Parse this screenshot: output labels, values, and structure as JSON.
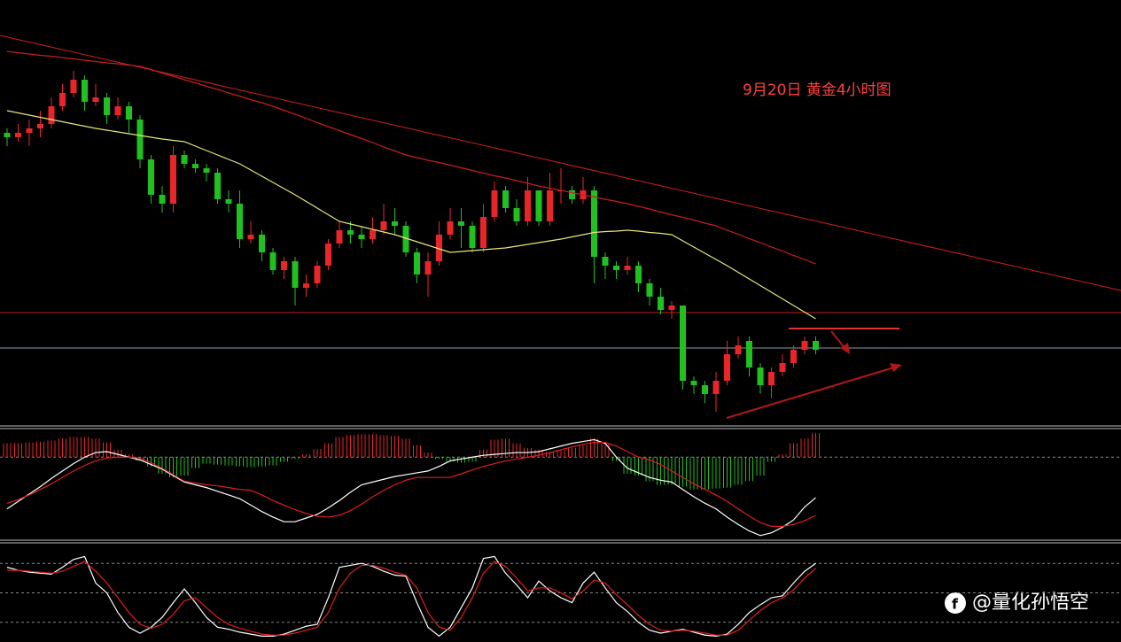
{
  "chart_data": [
    {
      "type": "candlestick",
      "title": "9月20日 黄金4小时图",
      "ylim": [
        1644,
        1740
      ],
      "up_color": "#e8262a",
      "down_color": "#1fc01f",
      "candles": [
        [
          1710,
          1709,
          1711,
          1707
        ],
        [
          1709,
          1710,
          1712,
          1708
        ],
        [
          1710,
          1711,
          1713,
          1707
        ],
        [
          1711,
          1712,
          1715,
          1709
        ],
        [
          1712,
          1716,
          1718,
          1711
        ],
        [
          1716,
          1719,
          1721,
          1715
        ],
        [
          1719,
          1722,
          1724,
          1718
        ],
        [
          1722,
          1717,
          1723,
          1715
        ],
        [
          1717,
          1718,
          1721,
          1716
        ],
        [
          1718,
          1714,
          1719,
          1712
        ],
        [
          1714,
          1716,
          1718,
          1713
        ],
        [
          1716,
          1713,
          1717,
          1710
        ],
        [
          1713,
          1704,
          1714,
          1702
        ],
        [
          1704,
          1696,
          1705,
          1694
        ],
        [
          1696,
          1694,
          1698,
          1692
        ],
        [
          1694,
          1705,
          1707,
          1692
        ],
        [
          1705,
          1703,
          1706,
          1702
        ],
        [
          1703,
          1702,
          1704,
          1701
        ],
        [
          1702,
          1701,
          1703,
          1699
        ],
        [
          1701,
          1695,
          1702,
          1694
        ],
        [
          1695,
          1694,
          1697,
          1692
        ],
        [
          1694,
          1686,
          1697,
          1684
        ],
        [
          1686,
          1687,
          1690,
          1685
        ],
        [
          1687,
          1683,
          1688,
          1681
        ],
        [
          1683,
          1679,
          1684,
          1678
        ],
        [
          1679,
          1681,
          1682,
          1677
        ],
        [
          1681,
          1675,
          1682,
          1671
        ],
        [
          1675,
          1676,
          1678,
          1673
        ],
        [
          1676,
          1680,
          1681,
          1675
        ],
        [
          1680,
          1685,
          1686,
          1679
        ],
        [
          1685,
          1688,
          1690,
          1684
        ],
        [
          1688,
          1687,
          1690,
          1685
        ],
        [
          1687,
          1686,
          1689,
          1684
        ],
        [
          1686,
          1688,
          1691,
          1685
        ],
        [
          1688,
          1690,
          1694,
          1687
        ],
        [
          1690,
          1689,
          1693,
          1687
        ],
        [
          1689,
          1683,
          1690,
          1682
        ],
        [
          1683,
          1678,
          1684,
          1676
        ],
        [
          1678,
          1681,
          1683,
          1673
        ],
        [
          1681,
          1687,
          1690,
          1680
        ],
        [
          1687,
          1690,
          1693,
          1686
        ],
        [
          1690,
          1689,
          1693,
          1684
        ],
        [
          1689,
          1684,
          1690,
          1683
        ],
        [
          1684,
          1691,
          1694,
          1683
        ],
        [
          1691,
          1697,
          1699,
          1690
        ],
        [
          1697,
          1693,
          1698,
          1692
        ],
        [
          1693,
          1690,
          1695,
          1689
        ],
        [
          1690,
          1697,
          1700,
          1689
        ],
        [
          1697,
          1690,
          1697,
          1689
        ],
        [
          1690,
          1697,
          1701,
          1689
        ],
        [
          1697,
          1697,
          1702,
          1694
        ],
        [
          1697,
          1695,
          1698,
          1694
        ],
        [
          1695,
          1697,
          1700,
          1694
        ],
        [
          1697,
          1682,
          1698,
          1676
        ],
        [
          1682,
          1680,
          1683,
          1677
        ],
        [
          1680,
          1679,
          1681,
          1677
        ],
        [
          1679,
          1680,
          1682,
          1678
        ],
        [
          1680,
          1676,
          1681,
          1674
        ],
        [
          1676,
          1673,
          1677,
          1671
        ],
        [
          1673,
          1670,
          1675,
          1669
        ],
        [
          1670,
          1671,
          1672,
          1668
        ],
        [
          1671,
          1654,
          1671,
          1652
        ],
        [
          1654,
          1653,
          1655,
          1651
        ],
        [
          1653,
          1651,
          1654,
          1649
        ],
        [
          1651,
          1654,
          1656,
          1647
        ],
        [
          1654,
          1660,
          1663,
          1653
        ],
        [
          1660,
          1662,
          1664,
          1659
        ],
        [
          1663,
          1657,
          1664,
          1655
        ],
        [
          1657,
          1653,
          1658,
          1651
        ],
        [
          1653,
          1656,
          1657,
          1650
        ],
        [
          1656,
          1658,
          1660,
          1655
        ],
        [
          1658,
          1661,
          1662,
          1657
        ],
        [
          1661,
          1663,
          1664,
          1660
        ],
        [
          1663,
          1661,
          1664,
          1660
        ]
      ],
      "series": [
        {
          "color": "#e6e67a",
          "values": [
            1715,
            1714.5,
            1714,
            1713.5,
            1713,
            1712.5,
            1712,
            1711.5,
            1711,
            1710.6,
            1710.2,
            1709.8,
            1709.4,
            1709,
            1708.6,
            1708.3,
            1708,
            1707,
            1706,
            1705,
            1704,
            1703,
            1701.6,
            1700.2,
            1698.8,
            1697.4,
            1696,
            1694.5,
            1693,
            1691.5,
            1690,
            1689.4,
            1688.8,
            1688.2,
            1687.6,
            1687,
            1686.2,
            1685.4,
            1684.6,
            1683.8,
            1683,
            1683.2,
            1683.4,
            1683.6,
            1683.8,
            1684,
            1684.4,
            1684.8,
            1685.2,
            1685.6,
            1686,
            1686.5,
            1687,
            1687.5,
            1687.7,
            1687.8,
            1688,
            1687.8,
            1687.5,
            1687.3,
            1687,
            1685.6,
            1684.2,
            1682.8,
            1681.4,
            1680,
            1678.5,
            1677,
            1675.5,
            1674,
            1672.5,
            1671,
            1669.5,
            1668
          ]
        },
        {
          "color": "#c81e1e",
          "values": [
            1728.4,
            1728.1,
            1727.8,
            1727.5,
            1727.3,
            1727,
            1726.7,
            1726.4,
            1726.1,
            1725.8,
            1725.6,
            1725.3,
            1725,
            1724.3,
            1723.5,
            1722.8,
            1722,
            1721.3,
            1720.5,
            1719.8,
            1719,
            1718.3,
            1717.5,
            1716.8,
            1716,
            1715.1,
            1714.2,
            1713.3,
            1712.3,
            1711.4,
            1710.5,
            1709.6,
            1708.7,
            1707.8,
            1706.8,
            1705.9,
            1705,
            1704.4,
            1703.8,
            1703.3,
            1702.7,
            1702.1,
            1701.5,
            1700.9,
            1700.3,
            1699.8,
            1699.2,
            1698.6,
            1698,
            1697.5,
            1697,
            1696.5,
            1696,
            1695.5,
            1695,
            1694.5,
            1694,
            1693.4,
            1692.8,
            1692.1,
            1691.5,
            1690.9,
            1690.3,
            1689.6,
            1689,
            1688,
            1687.1,
            1686.1,
            1685.2,
            1684.2,
            1683.3,
            1682.3,
            1681.4,
            1680.4
          ]
        }
      ]
    },
    {
      "type": "macd",
      "ylim": [
        -9,
        3
      ],
      "yticks": [
        0
      ],
      "grid": true,
      "up_color": "#e8262a",
      "down_color": "#1fc01f",
      "histogram": [
        1.5,
        1.5,
        1.6,
        1.7,
        1.8,
        2,
        2.2,
        2.2,
        2,
        1.6,
        0.8,
        0.3,
        -0.4,
        -1,
        -1.8,
        -2.2,
        -2,
        -1.2,
        -0.7,
        -0.8,
        -0.9,
        -1,
        -1.1,
        -1,
        -0.9,
        -0.5,
        -0.2,
        0.3,
        0.9,
        1.5,
        2.2,
        2.4,
        2.5,
        2.5,
        2.4,
        2.3,
        2,
        1.3,
        0.5,
        -0.2,
        -0.5,
        -0.6,
        -0.5,
        0.8,
        1.9,
        2,
        1.5,
        1,
        0.8,
        0.6,
        0.8,
        1,
        1.3,
        2,
        1.5,
        -0.4,
        -1.8,
        -2,
        -2.6,
        -3,
        -3,
        -3.2,
        -3.5,
        -3.5,
        -3.4,
        -3.3,
        -3,
        -2.6,
        -2,
        -0.5,
        0.3,
        1.5,
        2,
        2.6
      ],
      "series": [
        {
          "color": "#ffffff",
          "values": [
            -5.6,
            -4.8,
            -4,
            -3.2,
            -2.3,
            -1.5,
            -0.7,
            0,
            0.5,
            0.6,
            0.3,
            0,
            -0.3,
            -0.8,
            -1.3,
            -2,
            -2.7,
            -3,
            -3.3,
            -3.7,
            -4.1,
            -4.5,
            -5.2,
            -5.9,
            -6.5,
            -7,
            -7,
            -6.6,
            -6.2,
            -5.5,
            -4.7,
            -3.8,
            -3,
            -2.7,
            -2.4,
            -2.1,
            -1.9,
            -1.7,
            -1.5,
            -1,
            -0.4,
            -0.2,
            0,
            0.2,
            0.3,
            0.4,
            0.5,
            0.5,
            0.6,
            0.9,
            1.2,
            1.5,
            1.7,
            1.9,
            1.5,
            0,
            -1.2,
            -1.7,
            -2.2,
            -2.5,
            -2.7,
            -3.5,
            -4.3,
            -5,
            -5.6,
            -6.5,
            -7.3,
            -8,
            -8.5,
            -8.2,
            -7.6,
            -6.8,
            -5.4,
            -4.4
          ]
        },
        {
          "color": "#e01e1e",
          "values": [
            -5,
            -4.6,
            -4.1,
            -3.5,
            -2.9,
            -2.2,
            -1.5,
            -0.9,
            -0.4,
            -0.1,
            0,
            0,
            -0.1,
            -0.6,
            -1.2,
            -1.9,
            -2.6,
            -2.8,
            -3,
            -3.1,
            -3.3,
            -3.5,
            -3.6,
            -4.1,
            -4.7,
            -5.2,
            -5.7,
            -6.1,
            -6.4,
            -6.5,
            -6.3,
            -5.8,
            -5.1,
            -4.3,
            -3.6,
            -3,
            -2.5,
            -2.2,
            -2.2,
            -2.2,
            -2.2,
            -1.8,
            -1.4,
            -1,
            -0.7,
            -0.4,
            -0.2,
            0,
            0.2,
            0.5,
            0.8,
            1.1,
            1.4,
            1.6,
            1.6,
            1.2,
            0.6,
            0,
            -0.3,
            -0.8,
            -1.5,
            -2.2,
            -2.9,
            -3.5,
            -4.1,
            -4.8,
            -5.6,
            -6.4,
            -7.1,
            -7.5,
            -7.5,
            -7.3,
            -6.9,
            -6.3
          ]
        }
      ]
    },
    {
      "type": "line",
      "ylim": [
        0,
        100
      ],
      "yticks": [
        20,
        50,
        80
      ],
      "grid": true,
      "series": [
        {
          "color": "#ffffff",
          "values": [
            76,
            73,
            71,
            70,
            69,
            76,
            84,
            87,
            60,
            50,
            30,
            15,
            9,
            15,
            25,
            40,
            54,
            40,
            25,
            15,
            13,
            10,
            8,
            6,
            6,
            8,
            12,
            16,
            18,
            45,
            76,
            78,
            80,
            77,
            72,
            68,
            67,
            40,
            15,
            6,
            15,
            35,
            55,
            85,
            87,
            70,
            58,
            45,
            62,
            52,
            45,
            40,
            60,
            71,
            55,
            40,
            31,
            20,
            12,
            9,
            11,
            13,
            10,
            7,
            6,
            8,
            18,
            30,
            38,
            45,
            47,
            60,
            72,
            80
          ]
        },
        {
          "color": "#e01e1e",
          "values": [
            73,
            73,
            72,
            71,
            70,
            72,
            77,
            82,
            72,
            60,
            45,
            30,
            18,
            14,
            18,
            28,
            42,
            45,
            35,
            25,
            18,
            14,
            11,
            8,
            7,
            7,
            9,
            12,
            15,
            30,
            55,
            70,
            78,
            78,
            75,
            71,
            68,
            55,
            30,
            15,
            12,
            25,
            45,
            70,
            82,
            77,
            65,
            52,
            55,
            55,
            50,
            44,
            52,
            63,
            60,
            48,
            38,
            27,
            18,
            12,
            11,
            12,
            11,
            9,
            7,
            7,
            12,
            22,
            32,
            40,
            45,
            53,
            65,
            75
          ]
        }
      ]
    }
  ],
  "watermark": "@量化孙悟空"
}
